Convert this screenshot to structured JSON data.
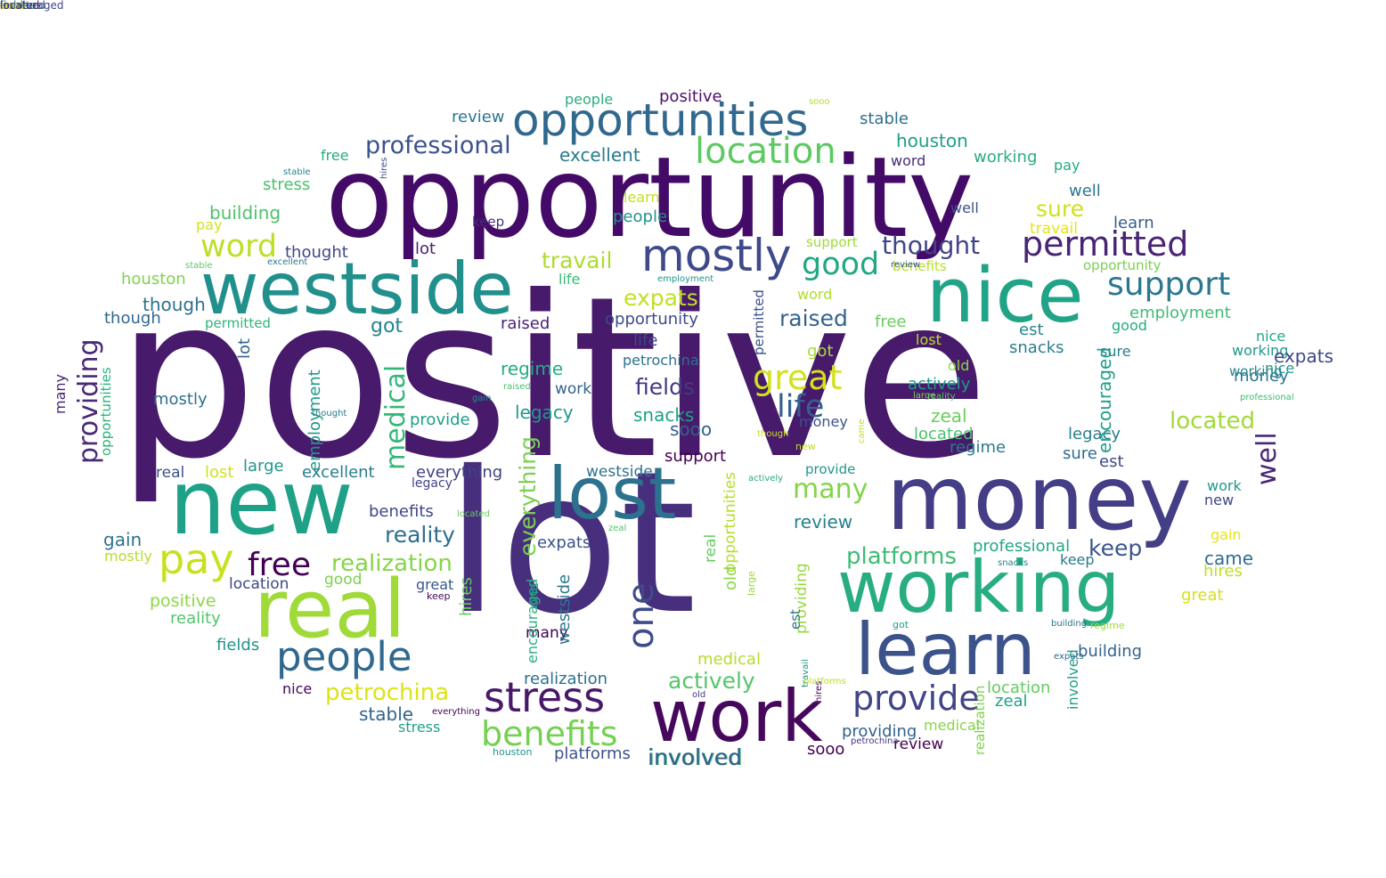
{
  "words": [
    {
      "text": "positive",
      "color": "#481a6c",
      "rotate": false
    },
    {
      "text": "lot",
      "color": "#472f7d",
      "rotate": false
    },
    {
      "text": "opportunity",
      "color": "#440a68",
      "rotate": false
    },
    {
      "text": "westside",
      "color": "#21908d",
      "rotate": false
    },
    {
      "text": "nice",
      "color": "#20a386",
      "rotate": false
    },
    {
      "text": "new",
      "color": "#1fa188",
      "rotate": false
    },
    {
      "text": "money",
      "color": "#433e85",
      "rotate": false
    },
    {
      "text": "working",
      "color": "#27ad81",
      "rotate": false
    },
    {
      "text": "real",
      "color": "#a0da39",
      "rotate": false
    },
    {
      "text": "learn",
      "color": "#3b528b",
      "rotate": false
    },
    {
      "text": "work",
      "color": "#46085c",
      "rotate": false
    },
    {
      "text": "lost",
      "color": "#2c728e",
      "rotate": false
    },
    {
      "text": "opportunities",
      "color": "#31688e",
      "rotate": false
    },
    {
      "text": "people",
      "color": "#31688e",
      "rotate": false
    },
    {
      "text": "mostly",
      "color": "#3e4a89",
      "rotate": false
    },
    {
      "text": "stress",
      "color": "#48186a",
      "rotate": false
    },
    {
      "text": "pay",
      "color": "#c8e020",
      "rotate": false
    },
    {
      "text": "location",
      "color": "#5ec962",
      "rotate": false
    },
    {
      "text": "provide",
      "color": "#414487",
      "rotate": false
    },
    {
      "text": "benefits",
      "color": "#75d054",
      "rotate": false
    },
    {
      "text": "permitted",
      "color": "#482475",
      "rotate": false
    },
    {
      "text": "support",
      "color": "#2a788e",
      "rotate": false
    },
    {
      "text": "great",
      "color": "#d2e21b",
      "rotate": false
    },
    {
      "text": "providing",
      "color": "#482878",
      "rotate": true
    },
    {
      "text": "well",
      "color": "#482777",
      "rotate": true
    },
    {
      "text": "free",
      "color": "#440154",
      "rotate": false
    },
    {
      "text": "word",
      "color": "#bddf26",
      "rotate": false
    },
    {
      "text": "professional",
      "color": "#3b528b",
      "rotate": false
    },
    {
      "text": "good",
      "color": "#22a884",
      "rotate": false
    },
    {
      "text": "one",
      "color": "#3e4c8a",
      "rotate": true
    },
    {
      "text": "medical",
      "color": "#35b779",
      "rotate": true
    },
    {
      "text": "life",
      "color": "#355f8d",
      "rotate": false
    },
    {
      "text": "realization",
      "color": "#86d549",
      "rotate": false
    },
    {
      "text": "thought",
      "color": "#404588",
      "rotate": false
    },
    {
      "text": "many",
      "color": "#84d44b",
      "rotate": false
    },
    {
      "text": "petrochina",
      "color": "#dde318",
      "rotate": false
    },
    {
      "text": "platforms",
      "color": "#3dbc74",
      "rotate": false
    },
    {
      "text": "actively",
      "color": "#54c568",
      "rotate": false
    },
    {
      "text": "involved",
      "color": "#35b779",
      "rotate": false
    },
    {
      "text": "everything",
      "color": "#7ad151",
      "rotate": true
    },
    {
      "text": "fields",
      "color": "#443a83",
      "rotate": false
    },
    {
      "text": "expats",
      "color": "#c2df23",
      "rotate": false
    },
    {
      "text": "raised",
      "color": "#33638d",
      "rotate": false
    },
    {
      "text": "reality",
      "color": "#2e6e8e",
      "rotate": false
    },
    {
      "text": "travail",
      "color": "#addc30",
      "rotate": false
    },
    {
      "text": "sure",
      "color": "#d0e11c",
      "rotate": false
    },
    {
      "text": "keep",
      "color": "#3a548c",
      "rotate": false
    },
    {
      "text": "located",
      "color": "#a2da37",
      "rotate": false
    },
    {
      "text": "houston",
      "color": "#1f9e89",
      "rotate": false
    },
    {
      "text": "excellent",
      "color": "#287c8e",
      "rotate": false
    },
    {
      "text": "review",
      "color": "#2a768e",
      "rotate": false
    },
    {
      "text": "stable",
      "color": "#2d708e",
      "rotate": false
    },
    {
      "text": "positive",
      "color": "#4d0f6c",
      "rotate": false
    },
    {
      "text": "people",
      "color": "#29af7f",
      "rotate": false
    },
    {
      "text": "sooo",
      "color": "#b5de2b",
      "rotate": false
    },
    {
      "text": "stable",
      "color": "#26828e",
      "rotate": false
    },
    {
      "text": "word",
      "color": "#472c7a",
      "rotate": false
    },
    {
      "text": "working",
      "color": "#28ae80",
      "rotate": false
    },
    {
      "text": "pay",
      "color": "#25ab82",
      "rotate": false
    },
    {
      "text": "free",
      "color": "#25ab82",
      "rotate": false
    },
    {
      "text": "stress",
      "color": "#4ac16d",
      "rotate": false
    },
    {
      "text": "building",
      "color": "#4ec36b",
      "rotate": false
    },
    {
      "text": "pay",
      "color": "#d8e219",
      "rotate": false
    },
    {
      "text": "learn",
      "color": "#c0df25",
      "rotate": false
    },
    {
      "text": "people",
      "color": "#21918c",
      "rotate": false
    },
    {
      "text": "well",
      "color": "#2a788e",
      "rotate": false
    },
    {
      "text": "well",
      "color": "#3c4f8a",
      "rotate": false
    },
    {
      "text": "learn",
      "color": "#365c8d",
      "rotate": false
    },
    {
      "text": "travail",
      "color": "#e5e419",
      "rotate": false
    },
    {
      "text": "thought",
      "color": "#3f4889",
      "rotate": false
    },
    {
      "text": "lot",
      "color": "#482173",
      "rotate": false
    },
    {
      "text": "houston",
      "color": "#7fd34e",
      "rotate": false
    },
    {
      "text": "though",
      "color": "#2d708e",
      "rotate": false
    },
    {
      "text": "though",
      "color": "#31688e",
      "rotate": false
    },
    {
      "text": "support",
      "color": "#9fda3a",
      "rotate": false
    },
    {
      "text": "benefits",
      "color": "#b8de29",
      "rotate": false
    },
    {
      "text": "opportunity",
      "color": "#7ad151",
      "rotate": false
    },
    {
      "text": "life",
      "color": "#3aba76",
      "rotate": false
    },
    {
      "text": "word",
      "color": "#b0dd2f",
      "rotate": false
    },
    {
      "text": "opportunity",
      "color": "#3e4989",
      "rotate": false
    },
    {
      "text": "permitted",
      "color": "#2eb37c",
      "rotate": false
    },
    {
      "text": "raised",
      "color": "#482475",
      "rotate": false
    },
    {
      "text": "free",
      "color": "#67cc5c",
      "rotate": false
    },
    {
      "text": "employment",
      "color": "#3fbc73",
      "rotate": false
    },
    {
      "text": "got",
      "color": "#25848e",
      "rotate": false
    },
    {
      "text": "got",
      "color": "#a5db36",
      "rotate": false
    },
    {
      "text": "lost",
      "color": "#bade28",
      "rotate": false
    },
    {
      "text": "nice",
      "color": "#22a785",
      "rotate": false
    },
    {
      "text": "good",
      "color": "#24aa83",
      "rotate": false
    },
    {
      "text": "est",
      "color": "#24868e",
      "rotate": false
    },
    {
      "text": "snacks",
      "color": "#277f8e",
      "rotate": false
    },
    {
      "text": "working",
      "color": "#1f9a8a",
      "rotate": false
    },
    {
      "text": "life",
      "color": "#3e4a89",
      "rotate": false
    },
    {
      "text": "petrochina",
      "color": "#2c718e",
      "rotate": false
    },
    {
      "text": "regime",
      "color": "#25ac82",
      "rotate": false
    },
    {
      "text": "old",
      "color": "#8bd646",
      "rotate": false
    },
    {
      "text": "work",
      "color": "#33628d",
      "rotate": false
    },
    {
      "text": "actively",
      "color": "#1e9b8a",
      "rotate": false
    },
    {
      "text": "mostly",
      "color": "#2d708e",
      "rotate": false
    },
    {
      "text": "legacy",
      "color": "#1f988b",
      "rotate": false
    },
    {
      "text": "zeal",
      "color": "#6ccd5a",
      "rotate": false
    },
    {
      "text": "provide",
      "color": "#1f9f88",
      "rotate": false
    },
    {
      "text": "snacks",
      "color": "#1fa188",
      "rotate": false
    },
    {
      "text": "money",
      "color": "#3a548c",
      "rotate": false
    },
    {
      "text": "located",
      "color": "#4ac16d",
      "rotate": false
    },
    {
      "text": "legacy",
      "color": "#277f8e",
      "rotate": false
    },
    {
      "text": "sooo",
      "color": "#355f8d",
      "rotate": false
    },
    {
      "text": "regime",
      "color": "#297a8e",
      "rotate": false
    },
    {
      "text": "real",
      "color": "#3b528b",
      "rotate": false
    },
    {
      "text": "lost",
      "color": "#d0e11c",
      "rotate": false
    },
    {
      "text": "large",
      "color": "#1f978b",
      "rotate": false
    },
    {
      "text": "excellent",
      "color": "#277e8e",
      "rotate": false
    },
    {
      "text": "everything",
      "color": "#424186",
      "rotate": false
    },
    {
      "text": "westside",
      "color": "#2c728e",
      "rotate": false
    },
    {
      "text": "support",
      "color": "#440154",
      "rotate": false
    },
    {
      "text": "provide",
      "color": "#1f968b",
      "rotate": false
    },
    {
      "text": "sure",
      "color": "#2f6c8e",
      "rotate": false
    },
    {
      "text": "est",
      "color": "#3e4a89",
      "rotate": false
    },
    {
      "text": "benefits",
      "color": "#3f4788",
      "rotate": false
    },
    {
      "text": "gain",
      "color": "#2c728e",
      "rotate": false
    },
    {
      "text": "expats",
      "color": "#3b528b",
      "rotate": false
    },
    {
      "text": "review",
      "color": "#26828e",
      "rotate": false
    },
    {
      "text": "professional",
      "color": "#22a785",
      "rotate": false
    },
    {
      "text": "mostly",
      "color": "#b5de2b",
      "rotate": false
    },
    {
      "text": "location",
      "color": "#3f4788",
      "rotate": false
    },
    {
      "text": "good",
      "color": "#7ad151",
      "rotate": false
    },
    {
      "text": "great",
      "color": "#39568c",
      "rotate": false
    },
    {
      "text": "keep",
      "color": "#450559",
      "rotate": false
    },
    {
      "text": "positive",
      "color": "#8ed645",
      "rotate": false
    },
    {
      "text": "reality",
      "color": "#52c569",
      "rotate": false
    },
    {
      "text": "fields",
      "color": "#20928c",
      "rotate": false
    },
    {
      "text": "many",
      "color": "#440154",
      "rotate": false
    },
    {
      "text": "keep",
      "color": "#2a788e",
      "rotate": false
    },
    {
      "text": "realization",
      "color": "#2d708e",
      "rotate": false
    },
    {
      "text": "medical",
      "color": "#b5de2b",
      "rotate": false
    },
    {
      "text": "nice",
      "color": "#450559",
      "rotate": false
    },
    {
      "text": "stable",
      "color": "#33638d",
      "rotate": false
    },
    {
      "text": "review",
      "color": "#440154",
      "rotate": false
    },
    {
      "text": "stress",
      "color": "#1fa088",
      "rotate": false
    },
    {
      "text": "houston",
      "color": "#21918c",
      "rotate": false
    },
    {
      "text": "platforms",
      "color": "#3b528b",
      "rotate": false
    },
    {
      "text": "sooo",
      "color": "#440154",
      "rotate": false
    },
    {
      "text": "providing",
      "color": "#33638d",
      "rotate": false
    },
    {
      "text": "involved",
      "color": "#355f8d",
      "rotate": false
    },
    {
      "text": "medical",
      "color": "#89d548",
      "rotate": false
    },
    {
      "text": "zeal",
      "color": "#20a386",
      "rotate": false
    },
    {
      "text": "location",
      "color": "#63cb5f",
      "rotate": false
    },
    {
      "text": "building",
      "color": "#33638d",
      "rotate": false
    },
    {
      "text": "came",
      "color": "#2f6c8e",
      "rotate": false
    },
    {
      "text": "hires",
      "color": "#bddf26",
      "rotate": false
    },
    {
      "text": "gain",
      "color": "#e5e419",
      "rotate": false
    },
    {
      "text": "great",
      "color": "#d5e21a",
      "rotate": false
    },
    {
      "text": "new",
      "color": "#3f4788",
      "rotate": false
    },
    {
      "text": "work",
      "color": "#1f988b",
      "rotate": false
    },
    {
      "text": "money",
      "color": "#2c728e",
      "rotate": false
    },
    {
      "text": "sure",
      "color": "#277e8e",
      "rotate": false
    },
    {
      "text": "nice",
      "color": "#1f9a8a",
      "rotate": false
    },
    {
      "text": "working",
      "color": "#24868e",
      "rotate": false
    },
    {
      "text": "expats",
      "color": "#3f4788",
      "rotate": false
    },
    {
      "text": "encouraged",
      "color": "#1f9f88",
      "rotate": true
    },
    {
      "text": "involved",
      "color": "#1fa188",
      "rotate": true
    },
    {
      "text": "many",
      "color": "#482475",
      "rotate": true
    },
    {
      "text": "opportunities",
      "color": "#2db27d",
      "rotate": true
    },
    {
      "text": "employment",
      "color": "#1f988b",
      "rotate": true
    },
    {
      "text": "lot",
      "color": "#33638d",
      "rotate": true
    },
    {
      "text": "opportunities",
      "color": "#b5de2b",
      "rotate": true
    },
    {
      "text": "large",
      "color": "#9bd93c",
      "rotate": true
    },
    {
      "text": "hires",
      "color": "#69cd5b",
      "rotate": true
    },
    {
      "text": "westside",
      "color": "#2a788e",
      "rotate": true
    },
    {
      "text": "encouraged",
      "color": "#27ad81",
      "rotate": true
    },
    {
      "text": "real",
      "color": "#65cb5e",
      "rotate": true
    },
    {
      "text": "old",
      "color": "#8bd646",
      "rotate": true
    },
    {
      "text": "providing",
      "color": "#99d83d",
      "rotate": true
    },
    {
      "text": "permitted",
      "color": "#3b528b",
      "rotate": true
    },
    {
      "text": "one",
      "color": "#1e9b8a",
      "rotate": true
    },
    {
      "text": "came",
      "color": "#c0df25",
      "rotate": true
    },
    {
      "text": "realization",
      "color": "#7fd34e",
      "rotate": true
    },
    {
      "text": "travail",
      "color": "#21918c",
      "rotate": true
    },
    {
      "text": "est",
      "color": "#2d708e",
      "rotate": true
    },
    {
      "text": "hires",
      "color": "#3e4989",
      "rotate": true
    },
    {
      "text": "building",
      "color": "#2c728e",
      "rotate": false
    },
    {
      "text": "excellent",
      "color": "#2a788e",
      "rotate": false
    },
    {
      "text": "stable",
      "color": "#5ec962",
      "rotate": false
    },
    {
      "text": "thought",
      "color": "#2a788e",
      "rotate": false
    },
    {
      "text": "large",
      "color": "#7ad151",
      "rotate": false
    },
    {
      "text": "legacy",
      "color": "#414487",
      "rotate": false
    },
    {
      "text": "located",
      "color": "#6ccd5a",
      "rotate": false
    },
    {
      "text": "zeal",
      "color": "#52c569",
      "rotate": false
    },
    {
      "text": "actively",
      "color": "#25ab82",
      "rotate": false
    },
    {
      "text": "raised",
      "color": "#4ac16d",
      "rotate": false
    },
    {
      "text": "though",
      "color": "#c8e020",
      "rotate": false
    },
    {
      "text": "new",
      "color": "#bddf26",
      "rotate": false
    },
    {
      "text": "gain",
      "color": "#21918c",
      "rotate": false
    },
    {
      "text": "professional",
      "color": "#3dbc74",
      "rotate": false
    },
    {
      "text": "got",
      "color": "#1f9e89",
      "rotate": false
    },
    {
      "text": "everything",
      "color": "#440154",
      "rotate": false
    },
    {
      "text": "old",
      "color": "#443983",
      "rotate": false
    },
    {
      "text": "regime",
      "color": "#a0da39",
      "rotate": false
    },
    {
      "text": "expats",
      "color": "#31688e",
      "rotate": false
    },
    {
      "text": "snacks",
      "color": "#26828e",
      "rotate": false
    },
    {
      "text": "keep",
      "color": "#472c7a",
      "rotate": false
    },
    {
      "text": "hires",
      "color": "#440154",
      "rotate": true
    },
    {
      "text": "platforms",
      "color": "#b8de29",
      "rotate": false
    },
    {
      "text": "petrochina",
      "color": "#46337f",
      "rotate": false
    },
    {
      "text": "reality",
      "color": "#5ec962",
      "rotate": false
    },
    {
      "text": "employment",
      "color": "#1f968b",
      "rotate": false
    },
    {
      "text": "review",
      "color": "#3a548c",
      "rotate": false
    },
    {
      "text": "came",
      "color": "#3b528b",
      "rotate": false
    },
    {
      "text": "encouraged",
      "color": "#414487",
      "rotate": false
    },
    {
      "text": "fields",
      "color": "#2c728e",
      "rotate": false
    },
    {
      "text": "houston",
      "color": "#25ab82",
      "rotate": false
    },
    {
      "text": "involved",
      "color": "#3e4c8a",
      "rotate": false
    },
    {
      "text": "sure",
      "color": "#2a788e",
      "rotate": false
    },
    {
      "text": "sooo",
      "color": "#e5e419",
      "rotate": false
    },
    {
      "text": "located",
      "color": "#482475",
      "rotate": false
    }
  ]
}
